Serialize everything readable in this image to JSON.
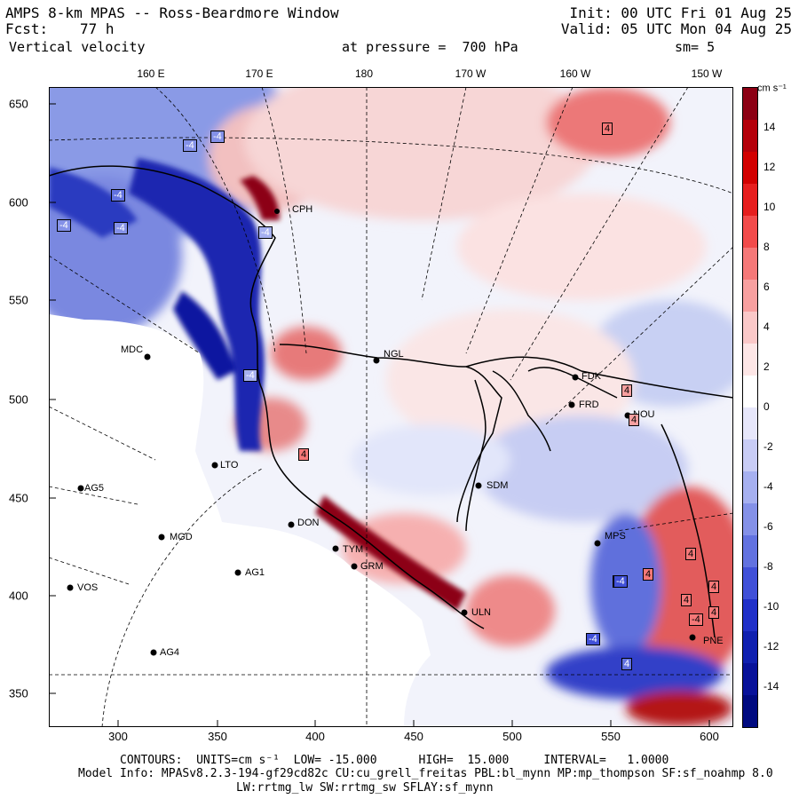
{
  "header": {
    "title": "AMPS 8-km MPAS -- Ross-Beardmore Window",
    "fcst_label": "Fcst:",
    "fcst_value": "77 h",
    "field": "Vertical velocity",
    "init": "Init: 00 UTC Fri 01 Aug 25",
    "valid": "Valid: 05 UTC Mon 04 Aug 25",
    "pressure": "at pressure =  700 hPa",
    "smooth": "sm= 5"
  },
  "longitude_labels": [
    "160 E",
    "170 E",
    "180",
    "170 W",
    "160 W",
    "150 W"
  ],
  "y_ticks": [
    "650",
    "600",
    "550",
    "500",
    "450",
    "400",
    "350"
  ],
  "x_ticks": [
    "300",
    "350",
    "400",
    "450",
    "500",
    "550",
    "600"
  ],
  "colorbar": {
    "units": "cm s⁻¹",
    "ticks": [
      "14",
      "12",
      "10",
      "8",
      "6",
      "4",
      "2",
      "0",
      "-2",
      "-4",
      "-6",
      "-8",
      "-10",
      "-12",
      "-14"
    ],
    "colors": [
      "#8c0014",
      "#b4000a",
      "#d20000",
      "#e61e1e",
      "#f24b4b",
      "#f57878",
      "#f8a0a0",
      "#fac8c8",
      "#fde6e6",
      "#ffffff",
      "#e6e6fa",
      "#c8ccf5",
      "#a6b0f0",
      "#8491e8",
      "#6272e0",
      "#4050d8",
      "#2030c8",
      "#1020b0",
      "#08129a",
      "#000a80"
    ]
  },
  "stations": [
    {
      "name": "CPH"
    },
    {
      "name": "MDC"
    },
    {
      "name": "NGL"
    },
    {
      "name": "FDK"
    },
    {
      "name": "FRD"
    },
    {
      "name": "NOU"
    },
    {
      "name": "AG5"
    },
    {
      "name": "LTO"
    },
    {
      "name": "SDM"
    },
    {
      "name": "MGD"
    },
    {
      "name": "DON"
    },
    {
      "name": "AG1"
    },
    {
      "name": "TYM"
    },
    {
      "name": "GRM"
    },
    {
      "name": "VOS"
    },
    {
      "name": "ULN"
    },
    {
      "name": "MPS"
    },
    {
      "name": "AG4"
    },
    {
      "name": "PNE"
    }
  ],
  "contour_labels": [
    "-4",
    "-4",
    "-4",
    "-4",
    "-4",
    "-4",
    "-4",
    "4",
    "4",
    "4",
    "-4",
    "4",
    "4",
    "4",
    "4",
    "4",
    "4",
    "-4",
    "-4",
    "4",
    "-4"
  ],
  "footer": {
    "contours": "CONTOURS:  UNITS=cm s⁻¹  LOW= -15.000      HIGH=  15.000     INTERVAL=   1.0000",
    "model1": "Model Info: MPASv8.2.3-194-gf29cd82c CU:cu_grell_freitas PBL:bl_mynn MP:mp_thompson SF:sf_noahmp 8.0",
    "model2": "LW:rrtmg_lw SW:rrtmg_sw SFLAY:sf_mynn"
  }
}
